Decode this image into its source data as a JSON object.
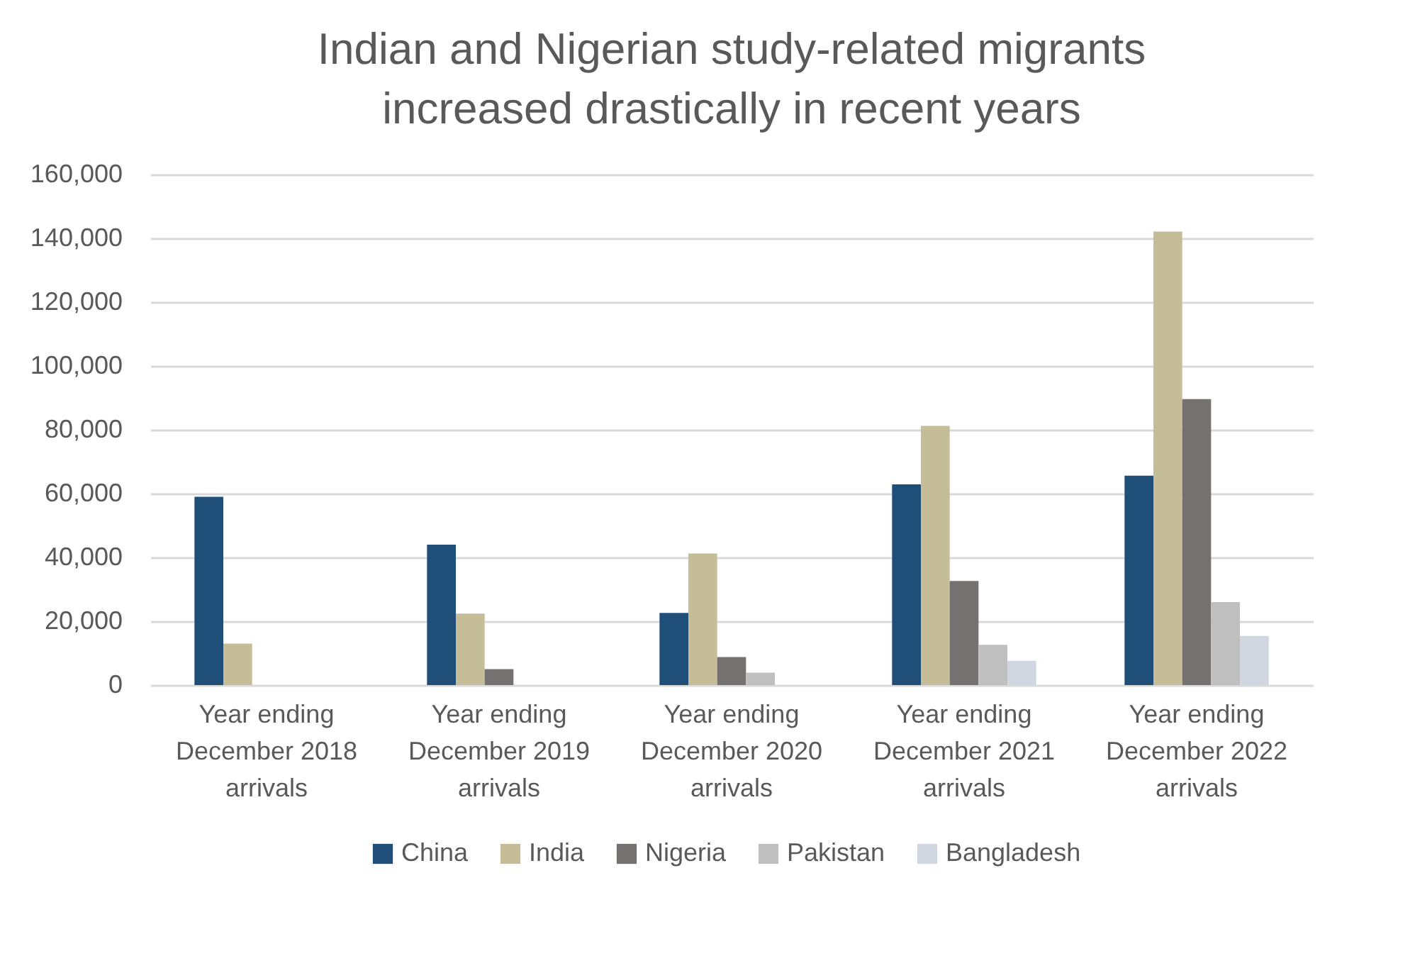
{
  "chart_data": {
    "type": "bar",
    "title": "Indian and Nigerian study-related migrants increased drastically in recent years",
    "categories": [
      "Year ending December 2018 arrivals",
      "Year ending December 2019 arrivals",
      "Year ending December 2020 arrivals",
      "Year ending December 2021 arrivals",
      "Year ending December 2022 arrivals"
    ],
    "series": [
      {
        "name": "China",
        "color": "#1f4e79",
        "values": [
          59000,
          44000,
          22600,
          62900,
          65600
        ]
      },
      {
        "name": "India",
        "color": "#c4bd97",
        "values": [
          13000,
          22400,
          41200,
          81200,
          142100
        ]
      },
      {
        "name": "Nigeria",
        "color": "#767171",
        "values": [
          null,
          5000,
          8800,
          32600,
          89600
        ]
      },
      {
        "name": "Pakistan",
        "color": "#bfbfbf",
        "values": [
          null,
          null,
          3900,
          12600,
          26000
        ]
      },
      {
        "name": "Bangladesh",
        "color": "#d0d7e0",
        "values": [
          null,
          null,
          null,
          7600,
          15400
        ]
      }
    ],
    "ylim": [
      0,
      160000
    ],
    "yticks": [
      0,
      {
        "value": 20000,
        "label": "20,000"
      },
      {
        "value": 40000,
        "label": "40,000"
      },
      {
        "value": 60000,
        "label": "60,000"
      },
      {
        "value": 80000,
        "label": "80,000"
      },
      {
        "value": 100000,
        "label": "100,000"
      },
      {
        "value": 120000,
        "label": "120,000"
      },
      {
        "value": 140000,
        "label": "140,000"
      },
      {
        "value": 160000,
        "label": "160,000"
      }
    ],
    "grid": "y",
    "legend": "bottom"
  }
}
